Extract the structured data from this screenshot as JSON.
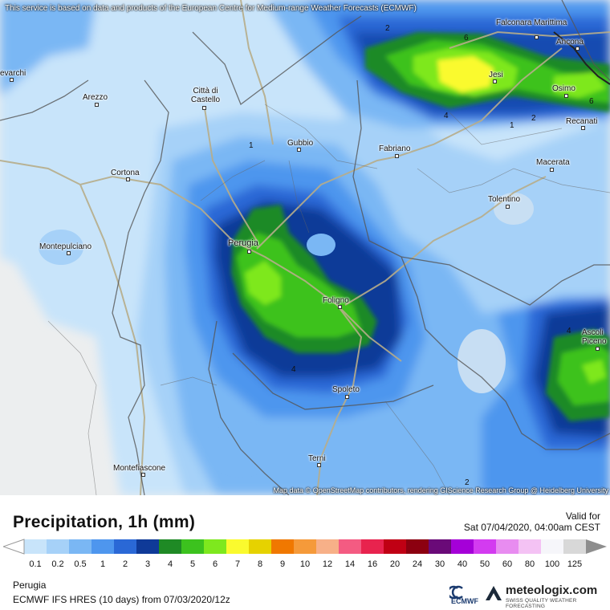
{
  "map": {
    "disclaimer": "This service is based on data and products of the European Centre for Medium-range Weather Forecasts (ECMWF)",
    "attribution": "Map data © OpenStreetMap contributors, rendering GIScience Research Group @ Heidelberg University",
    "cities": [
      {
        "name": "Falconara Marittima"
      },
      {
        "name": "Ancona"
      },
      {
        "name": "Jesi"
      },
      {
        "name": "Osimo"
      },
      {
        "name": "Recanati"
      },
      {
        "name": "evarchi"
      },
      {
        "name": "Arezzo"
      },
      {
        "name": "Città di Castello"
      },
      {
        "name": "Gubbio"
      },
      {
        "name": "Fabriano"
      },
      {
        "name": "Macerata"
      },
      {
        "name": "Cortona"
      },
      {
        "name": "Tolentino"
      },
      {
        "name": "Montepulciano"
      },
      {
        "name": "Perugia"
      },
      {
        "name": "Foligno"
      },
      {
        "name": "Ascoli Piceno"
      },
      {
        "name": "Spoleto"
      },
      {
        "name": "Terni"
      },
      {
        "name": "Montefiascone"
      }
    ],
    "contour_labels": [
      "2",
      "6",
      "4",
      "1",
      "2",
      "6",
      "1",
      "4",
      "4",
      "2"
    ]
  },
  "legend": {
    "title": "Precipitation, 1h (mm)",
    "valid_label": "Valid for",
    "valid_time": "Sat 07/04/2020, 04:00am CEST",
    "location": "Perugia",
    "model": "ECMWF IFS HRES  (10 days)  from  07/03/2020/12z",
    "scale": {
      "ticks": [
        "0.1",
        "0.2",
        "0.5",
        "1",
        "2",
        "3",
        "4",
        "5",
        "6",
        "7",
        "8",
        "9",
        "10",
        "12",
        "14",
        "16",
        "20",
        "24",
        "30",
        "40",
        "50",
        "60",
        "80",
        "100",
        "125"
      ],
      "colors": [
        "#c8e4fa",
        "#a6d1f8",
        "#7ab7f4",
        "#4e96ee",
        "#2a68d6",
        "#0f3a98",
        "#1f8a25",
        "#3cc21e",
        "#7ee81e",
        "#fafa2e",
        "#e6d200",
        "#f07800",
        "#f59a3a",
        "#f7b088",
        "#f45b82",
        "#e8234e",
        "#c00014",
        "#8c0010",
        "#6a0a78",
        "#a500d8",
        "#d33bf0",
        "#e88cf0",
        "#f4c2f4",
        "#f6f6fa",
        "#d8d8d8"
      ],
      "under_color": "#ffffff",
      "over_color": "#8e8e8e"
    },
    "ecmwf_label": "ECMWF",
    "brand_name": "meteologix.com",
    "brand_tagline": "SWISS QUALITY WEATHER FORECASTING"
  }
}
